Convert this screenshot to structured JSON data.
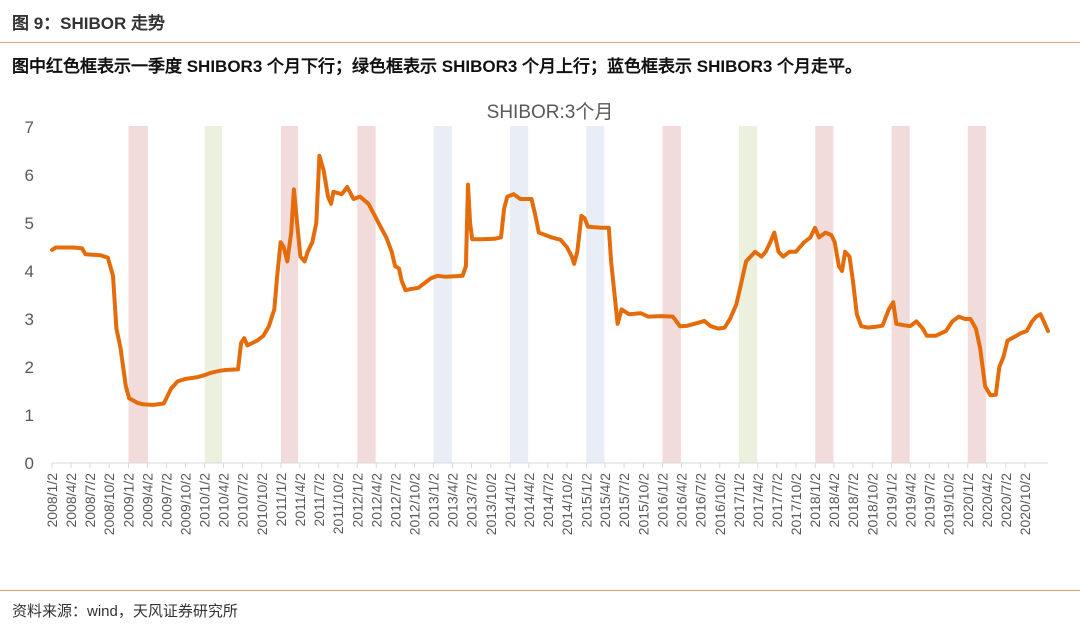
{
  "header": {
    "figure_label": "图 9：SHIBOR 走势",
    "note": "图中红色框表示一季度 SHIBOR3 个月下行；绿色框表示 SHIBOR3 个月上行；蓝色框表示 SHIBOR3 个月走平。"
  },
  "footer": {
    "source": "资料来源：wind，天风证券研究所"
  },
  "colors": {
    "line": "#E46C0A",
    "red_band": "#F2DCDB",
    "green_band": "#EBF1DE",
    "blue_band": "#E9EEF6",
    "rule": "#E8A070"
  },
  "chart_data": {
    "type": "line",
    "title": "SHIBOR:3个月",
    "xlabel": "",
    "ylabel": "",
    "x_start": "2008-01-02",
    "x_end": "2021-01-20",
    "ylim": [
      0,
      7
    ],
    "yticks": [
      0,
      1,
      2,
      3,
      4,
      5,
      6,
      7
    ],
    "xticks": [
      "2008/1/2",
      "2008/4/2",
      "2008/7/2",
      "2008/10/2",
      "2009/1/2",
      "2009/4/2",
      "2009/7/2",
      "2009/10/2",
      "2010/1/2",
      "2010/4/2",
      "2010/7/2",
      "2010/10/2",
      "2011/1/2",
      "2011/4/2",
      "2011/7/2",
      "2011/10/2",
      "2012/1/2",
      "2012/4/2",
      "2012/7/2",
      "2012/10/2",
      "2013/1/2",
      "2013/4/2",
      "2013/7/2",
      "2013/10/2",
      "2014/1/2",
      "2014/4/2",
      "2014/7/2",
      "2014/10/2",
      "2015/1/2",
      "2015/4/2",
      "2015/7/2",
      "2015/10/2",
      "2016/1/2",
      "2016/4/2",
      "2016/7/2",
      "2016/10/2",
      "2017/1/2",
      "2017/4/2",
      "2017/7/2",
      "2017/10/2",
      "2018/1/2",
      "2018/4/2",
      "2018/7/2",
      "2018/10/2",
      "2019/1/2",
      "2019/4/2",
      "2019/7/2",
      "2019/10/2",
      "2020/1/2",
      "2020/4/2",
      "2020/7/2",
      "2020/10/2"
    ],
    "grid": false,
    "legend": "none",
    "bands": [
      {
        "color": "red",
        "start": "2009-01-02",
        "end": "2009-04-05"
      },
      {
        "color": "green",
        "start": "2010-01-02",
        "end": "2010-03-25"
      },
      {
        "color": "red",
        "start": "2011-01-02",
        "end": "2011-03-25"
      },
      {
        "color": "red",
        "start": "2012-01-02",
        "end": "2012-03-30"
      },
      {
        "color": "blue",
        "start": "2013-01-02",
        "end": "2013-03-30"
      },
      {
        "color": "blue",
        "start": "2014-01-02",
        "end": "2014-03-30"
      },
      {
        "color": "blue",
        "start": "2015-01-02",
        "end": "2015-03-30"
      },
      {
        "color": "red",
        "start": "2016-01-02",
        "end": "2016-03-30"
      },
      {
        "color": "green",
        "start": "2017-01-02",
        "end": "2017-03-30"
      },
      {
        "color": "red",
        "start": "2018-01-02",
        "end": "2018-03-30"
      },
      {
        "color": "red",
        "start": "2019-01-02",
        "end": "2019-03-30"
      },
      {
        "color": "red",
        "start": "2020-01-02",
        "end": "2020-03-30"
      }
    ],
    "series": [
      {
        "values": [
          [
            "2008-01-02",
            4.44
          ],
          [
            "2008-01-20",
            4.49
          ],
          [
            "2008-04-15",
            4.49
          ],
          [
            "2008-05-25",
            4.47
          ],
          [
            "2008-06-10",
            4.35
          ],
          [
            "2008-08-20",
            4.33
          ],
          [
            "2008-09-25",
            4.28
          ],
          [
            "2008-10-20",
            3.9
          ],
          [
            "2008-11-05",
            2.8
          ],
          [
            "2008-11-25",
            2.4
          ],
          [
            "2008-12-20",
            1.6
          ],
          [
            "2009-01-05",
            1.35
          ],
          [
            "2009-02-15",
            1.25
          ],
          [
            "2009-03-15",
            1.22
          ],
          [
            "2009-05-01",
            1.21
          ],
          [
            "2009-06-20",
            1.24
          ],
          [
            "2009-07-25",
            1.55
          ],
          [
            "2009-08-25",
            1.7
          ],
          [
            "2009-09-30",
            1.75
          ],
          [
            "2009-11-30",
            1.79
          ],
          [
            "2009-12-31",
            1.83
          ],
          [
            "2010-02-01",
            1.88
          ],
          [
            "2010-03-15",
            1.92
          ],
          [
            "2010-04-15",
            1.94
          ],
          [
            "2010-06-10",
            1.95
          ],
          [
            "2010-06-25",
            2.5
          ],
          [
            "2010-07-10",
            2.6
          ],
          [
            "2010-07-25",
            2.45
          ],
          [
            "2010-09-10",
            2.55
          ],
          [
            "2010-10-10",
            2.65
          ],
          [
            "2010-11-05",
            2.85
          ],
          [
            "2010-12-01",
            3.2
          ],
          [
            "2010-12-15",
            3.9
          ],
          [
            "2010-12-31",
            4.6
          ],
          [
            "2011-01-15",
            4.5
          ],
          [
            "2011-02-01",
            4.2
          ],
          [
            "2011-02-20",
            4.8
          ],
          [
            "2011-03-05",
            5.7
          ],
          [
            "2011-03-20",
            5.0
          ],
          [
            "2011-04-05",
            4.3
          ],
          [
            "2011-04-25",
            4.2
          ],
          [
            "2011-05-10",
            4.4
          ],
          [
            "2011-06-01",
            4.6
          ],
          [
            "2011-06-20",
            5.0
          ],
          [
            "2011-07-05",
            6.4
          ],
          [
            "2011-07-25",
            6.1
          ],
          [
            "2011-08-15",
            5.55
          ],
          [
            "2011-08-30",
            5.4
          ],
          [
            "2011-09-10",
            5.65
          ],
          [
            "2011-10-20",
            5.6
          ],
          [
            "2011-11-15",
            5.75
          ],
          [
            "2011-12-15",
            5.5
          ],
          [
            "2012-01-15",
            5.55
          ],
          [
            "2012-02-25",
            5.4
          ],
          [
            "2012-03-20",
            5.2
          ],
          [
            "2012-04-25",
            4.9
          ],
          [
            "2012-05-20",
            4.7
          ],
          [
            "2012-06-15",
            4.4
          ],
          [
            "2012-07-01",
            4.1
          ],
          [
            "2012-07-20",
            4.05
          ],
          [
            "2012-08-01",
            3.8
          ],
          [
            "2012-08-20",
            3.6
          ],
          [
            "2012-09-20",
            3.63
          ],
          [
            "2012-10-20",
            3.65
          ],
          [
            "2012-11-20",
            3.75
          ],
          [
            "2012-12-20",
            3.85
          ],
          [
            "2013-01-20",
            3.9
          ],
          [
            "2013-03-01",
            3.88
          ],
          [
            "2013-04-15",
            3.89
          ],
          [
            "2013-05-20",
            3.9
          ],
          [
            "2013-06-05",
            4.1
          ],
          [
            "2013-06-15",
            5.8
          ],
          [
            "2013-06-25",
            5.0
          ],
          [
            "2013-07-05",
            4.66
          ],
          [
            "2013-08-20",
            4.66
          ],
          [
            "2013-10-20",
            4.67
          ],
          [
            "2013-11-20",
            4.7
          ],
          [
            "2013-12-05",
            5.3
          ],
          [
            "2013-12-20",
            5.55
          ],
          [
            "2014-01-20",
            5.6
          ],
          [
            "2014-02-20",
            5.5
          ],
          [
            "2014-04-15",
            5.5
          ],
          [
            "2014-05-01",
            5.2
          ],
          [
            "2014-05-20",
            4.8
          ],
          [
            "2014-07-20",
            4.7
          ],
          [
            "2014-09-01",
            4.65
          ],
          [
            "2014-10-01",
            4.5
          ],
          [
            "2014-10-25",
            4.3
          ],
          [
            "2014-11-05",
            4.15
          ],
          [
            "2014-11-20",
            4.4
          ],
          [
            "2014-12-10",
            5.15
          ],
          [
            "2014-12-25",
            5.1
          ],
          [
            "2015-01-10",
            4.92
          ],
          [
            "2015-03-15",
            4.9
          ],
          [
            "2015-04-20",
            4.9
          ],
          [
            "2015-05-01",
            4.2
          ],
          [
            "2015-05-20",
            3.4
          ],
          [
            "2015-06-01",
            2.9
          ],
          [
            "2015-06-20",
            3.2
          ],
          [
            "2015-07-25",
            3.1
          ],
          [
            "2015-09-20",
            3.12
          ],
          [
            "2015-10-25",
            3.05
          ],
          [
            "2015-12-31",
            3.06
          ],
          [
            "2016-02-20",
            3.05
          ],
          [
            "2016-03-25",
            2.85
          ],
          [
            "2016-05-01",
            2.86
          ],
          [
            "2016-06-20",
            2.92
          ],
          [
            "2016-07-20",
            2.96
          ],
          [
            "2016-08-20",
            2.85
          ],
          [
            "2016-09-25",
            2.8
          ],
          [
            "2016-10-25",
            2.82
          ],
          [
            "2016-11-20",
            3.0
          ],
          [
            "2016-12-20",
            3.3
          ],
          [
            "2017-01-10",
            3.7
          ],
          [
            "2017-02-05",
            4.2
          ],
          [
            "2017-03-20",
            4.4
          ],
          [
            "2017-04-20",
            4.3
          ],
          [
            "2017-05-10",
            4.4
          ],
          [
            "2017-06-01",
            4.6
          ],
          [
            "2017-06-20",
            4.8
          ],
          [
            "2017-07-10",
            4.4
          ],
          [
            "2017-08-01",
            4.3
          ],
          [
            "2017-09-01",
            4.4
          ],
          [
            "2017-10-01",
            4.4
          ],
          [
            "2017-11-10",
            4.6
          ],
          [
            "2017-12-10",
            4.7
          ],
          [
            "2018-01-01",
            4.9
          ],
          [
            "2018-01-20",
            4.7
          ],
          [
            "2018-02-20",
            4.8
          ],
          [
            "2018-03-20",
            4.75
          ],
          [
            "2018-04-05",
            4.6
          ],
          [
            "2018-04-25",
            4.1
          ],
          [
            "2018-05-10",
            4.0
          ],
          [
            "2018-05-25",
            4.4
          ],
          [
            "2018-06-15",
            4.3
          ],
          [
            "2018-07-01",
            3.8
          ],
          [
            "2018-07-20",
            3.1
          ],
          [
            "2018-08-10",
            2.85
          ],
          [
            "2018-09-10",
            2.82
          ],
          [
            "2018-10-20",
            2.84
          ],
          [
            "2018-11-20",
            2.86
          ],
          [
            "2018-12-20",
            3.2
          ],
          [
            "2019-01-10",
            3.35
          ],
          [
            "2019-01-25",
            2.9
          ],
          [
            "2019-03-01",
            2.87
          ],
          [
            "2019-04-01",
            2.85
          ],
          [
            "2019-05-01",
            2.95
          ],
          [
            "2019-06-01",
            2.8
          ],
          [
            "2019-06-20",
            2.65
          ],
          [
            "2019-08-01",
            2.65
          ],
          [
            "2019-09-20",
            2.75
          ],
          [
            "2019-10-20",
            2.95
          ],
          [
            "2019-11-20",
            3.05
          ],
          [
            "2019-12-20",
            3.0
          ],
          [
            "2020-01-15",
            3.0
          ],
          [
            "2020-02-10",
            2.8
          ],
          [
            "2020-03-01",
            2.4
          ],
          [
            "2020-03-25",
            1.6
          ],
          [
            "2020-04-20",
            1.41
          ],
          [
            "2020-05-15",
            1.42
          ],
          [
            "2020-06-01",
            2.0
          ],
          [
            "2020-06-20",
            2.2
          ],
          [
            "2020-07-10",
            2.55
          ],
          [
            "2020-08-10",
            2.62
          ],
          [
            "2020-09-10",
            2.7
          ],
          [
            "2020-10-10",
            2.75
          ],
          [
            "2020-11-05",
            2.95
          ],
          [
            "2020-11-25",
            3.05
          ],
          [
            "2020-12-15",
            3.1
          ],
          [
            "2020-12-31",
            2.95
          ],
          [
            "2021-01-20",
            2.75
          ]
        ]
      }
    ]
  }
}
